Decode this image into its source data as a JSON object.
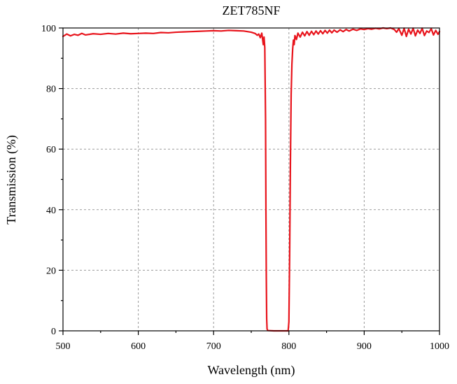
{
  "chart_data": {
    "type": "line",
    "title": "ZET785NF",
    "xlabel": "Wavelength (nm)",
    "ylabel": "Transmission (%)",
    "xlim": [
      500,
      1000
    ],
    "ylim": [
      0,
      100
    ],
    "xticks": [
      500,
      600,
      700,
      800,
      900,
      1000
    ],
    "yticks": [
      0,
      20,
      40,
      60,
      80,
      100
    ],
    "x_minor_step": 50,
    "y_minor_step": 10,
    "grid": true,
    "colors": {
      "series": "#e8141c",
      "grid": "#9a9a9a",
      "axis": "#000000"
    },
    "series": [
      {
        "color": "#e8141c",
        "points": [
          [
            500,
            97.2
          ],
          [
            505,
            98.0
          ],
          [
            510,
            97.4
          ],
          [
            515,
            97.9
          ],
          [
            520,
            97.6
          ],
          [
            525,
            98.2
          ],
          [
            530,
            97.7
          ],
          [
            540,
            98.1
          ],
          [
            550,
            97.9
          ],
          [
            560,
            98.2
          ],
          [
            570,
            98.0
          ],
          [
            580,
            98.3
          ],
          [
            590,
            98.1
          ],
          [
            600,
            98.2
          ],
          [
            610,
            98.3
          ],
          [
            620,
            98.2
          ],
          [
            630,
            98.5
          ],
          [
            640,
            98.4
          ],
          [
            650,
            98.6
          ],
          [
            660,
            98.7
          ],
          [
            670,
            98.8
          ],
          [
            680,
            98.9
          ],
          [
            690,
            99.0
          ],
          [
            700,
            99.1
          ],
          [
            710,
            99.0
          ],
          [
            720,
            99.2
          ],
          [
            730,
            99.1
          ],
          [
            740,
            99.0
          ],
          [
            750,
            98.6
          ],
          [
            755,
            98.2
          ],
          [
            758,
            97.6
          ],
          [
            760,
            98.0
          ],
          [
            762,
            96.8
          ],
          [
            764,
            98.3
          ],
          [
            766,
            94.5
          ],
          [
            767,
            97.0
          ],
          [
            768,
            93.5
          ],
          [
            769,
            70.0
          ],
          [
            769.5,
            40.0
          ],
          [
            770,
            18.0
          ],
          [
            770.5,
            4.0
          ],
          [
            771,
            0.6
          ],
          [
            772,
            0.1
          ],
          [
            780,
            0.0
          ],
          [
            790,
            0.0
          ],
          [
            799,
            0.0
          ],
          [
            800,
            3.0
          ],
          [
            801,
            25.0
          ],
          [
            802,
            55.0
          ],
          [
            803,
            78.0
          ],
          [
            804,
            88.0
          ],
          [
            805,
            93.0
          ],
          [
            806,
            96.0
          ],
          [
            807,
            94.5
          ],
          [
            808,
            97.5
          ],
          [
            810,
            96.2
          ],
          [
            812,
            98.3
          ],
          [
            815,
            97.0
          ],
          [
            818,
            98.6
          ],
          [
            821,
            97.4
          ],
          [
            824,
            98.8
          ],
          [
            827,
            97.6
          ],
          [
            830,
            98.9
          ],
          [
            833,
            97.8
          ],
          [
            836,
            99.0
          ],
          [
            839,
            98.0
          ],
          [
            842,
            99.1
          ],
          [
            845,
            98.1
          ],
          [
            848,
            99.2
          ],
          [
            851,
            98.3
          ],
          [
            854,
            99.3
          ],
          [
            857,
            98.4
          ],
          [
            860,
            99.3
          ],
          [
            864,
            98.6
          ],
          [
            868,
            99.4
          ],
          [
            872,
            98.8
          ],
          [
            876,
            99.5
          ],
          [
            880,
            99.0
          ],
          [
            885,
            99.6
          ],
          [
            890,
            99.2
          ],
          [
            895,
            99.7
          ],
          [
            900,
            99.5
          ],
          [
            905,
            99.8
          ],
          [
            910,
            99.6
          ],
          [
            915,
            99.9
          ],
          [
            920,
            99.7
          ],
          [
            925,
            100.0
          ],
          [
            930,
            99.8
          ],
          [
            935,
            100.0
          ],
          [
            940,
            99.5
          ],
          [
            943,
            98.6
          ],
          [
            946,
            99.8
          ],
          [
            950,
            97.6
          ],
          [
            953,
            99.9
          ],
          [
            956,
            97.2
          ],
          [
            959,
            99.6
          ],
          [
            962,
            98.0
          ],
          [
            965,
            99.9
          ],
          [
            968,
            97.4
          ],
          [
            971,
            99.3
          ],
          [
            974,
            98.2
          ],
          [
            977,
            99.9
          ],
          [
            980,
            97.5
          ],
          [
            983,
            99.0
          ],
          [
            986,
            98.5
          ],
          [
            989,
            99.8
          ],
          [
            992,
            97.7
          ],
          [
            995,
            99.2
          ],
          [
            998,
            97.9
          ],
          [
            1000,
            98.8
          ]
        ]
      }
    ]
  }
}
